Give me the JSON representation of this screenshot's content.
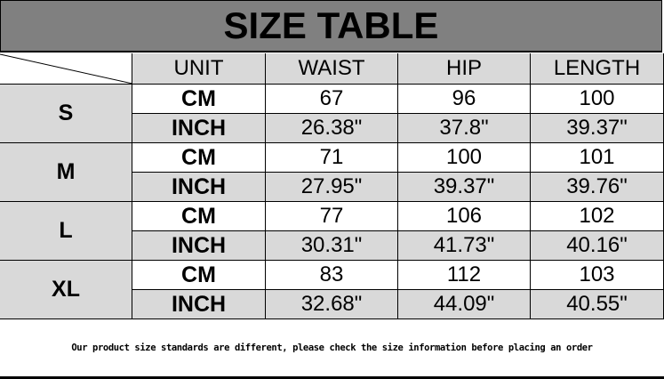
{
  "title": "SIZE TABLE",
  "columns": [
    "UNIT",
    "WAIST",
    "HIP",
    "LENGTH"
  ],
  "rows": [
    {
      "size": "S",
      "cm": [
        "CM",
        "67",
        "96",
        "100"
      ],
      "inch": [
        "INCH",
        "26.38\"",
        "37.8\"",
        "39.37\""
      ]
    },
    {
      "size": "M",
      "cm": [
        "CM",
        "71",
        "100",
        "101"
      ],
      "inch": [
        "INCH",
        "27.95\"",
        "39.37\"",
        "39.76\""
      ]
    },
    {
      "size": "L",
      "cm": [
        "CM",
        "77",
        "106",
        "102"
      ],
      "inch": [
        "INCH",
        "30.31\"",
        "41.73\"",
        "40.16\""
      ]
    },
    {
      "size": "XL",
      "cm": [
        "CM",
        "83",
        "112",
        "103"
      ],
      "inch": [
        "INCH",
        "32.68\"",
        "44.09\"",
        "40.55\""
      ]
    }
  ],
  "footer": "Our product size standards are different, please check the size information before placing an order",
  "colors": {
    "title_bg": "#808080",
    "shaded_cell": "#d9d9d9",
    "plain_cell": "#ffffff"
  }
}
